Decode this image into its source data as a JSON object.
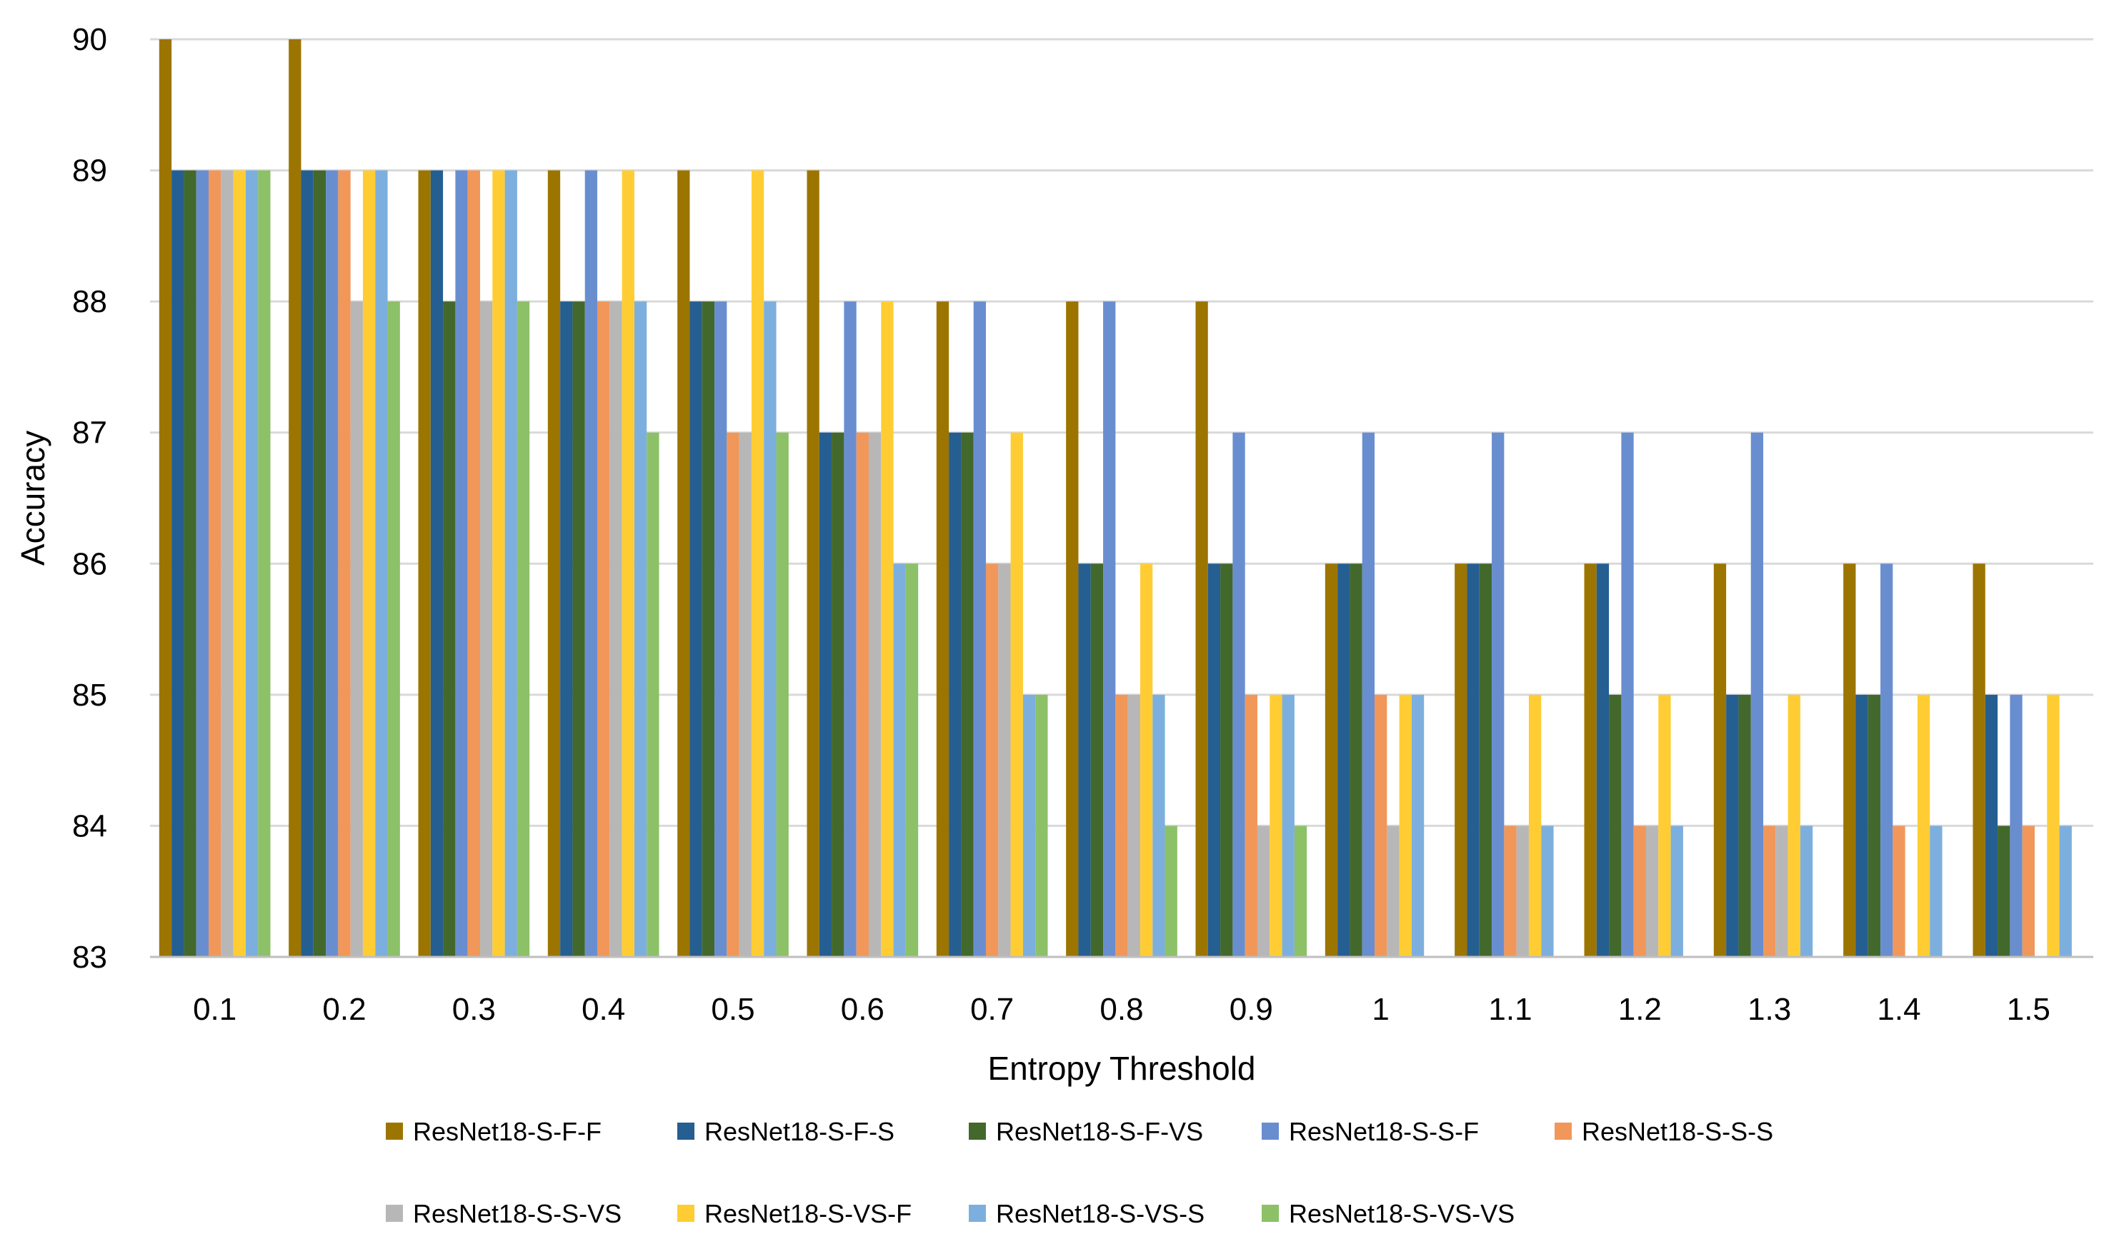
{
  "chart_data": {
    "type": "bar",
    "title": "",
    "xlabel": "Entropy Threshold",
    "ylabel": "Accuracy",
    "ylim": [
      83,
      90
    ],
    "yticks": [
      83,
      84,
      85,
      86,
      87,
      88,
      89,
      90
    ],
    "grid": true,
    "legend_position": "bottom",
    "categories": [
      "0.1",
      "0.2",
      "0.3",
      "0.4",
      "0.5",
      "0.6",
      "0.7",
      "0.8",
      "0.9",
      "1",
      "1.1",
      "1.2",
      "1.3",
      "1.4",
      "1.5"
    ],
    "series": [
      {
        "name": "ResNet18-S-F-F",
        "color": "#9C7500",
        "values": [
          90,
          90,
          89,
          89,
          89,
          89,
          88,
          88,
          88,
          86,
          86,
          86,
          86,
          86,
          86
        ]
      },
      {
        "name": "ResNet18-S-F-S",
        "color": "#255E91",
        "values": [
          89,
          89,
          89,
          88,
          88,
          87,
          87,
          86,
          86,
          86,
          86,
          86,
          85,
          85,
          85
        ]
      },
      {
        "name": "ResNet18-S-F-VS",
        "color": "#43682B",
        "values": [
          89,
          89,
          88,
          88,
          88,
          87,
          87,
          86,
          86,
          86,
          86,
          85,
          85,
          85,
          84
        ]
      },
      {
        "name": "ResNet18-S-S-F",
        "color": "#698ED0",
        "values": [
          89,
          89,
          89,
          89,
          88,
          88,
          88,
          88,
          87,
          87,
          87,
          87,
          87,
          86,
          85
        ]
      },
      {
        "name": "ResNet18-S-S-S",
        "color": "#F1975A",
        "values": [
          89,
          89,
          89,
          88,
          87,
          87,
          86,
          85,
          85,
          85,
          84,
          84,
          84,
          84,
          84
        ]
      },
      {
        "name": "ResNet18-S-S-VS",
        "color": "#B7B7B7",
        "values": [
          89,
          88,
          88,
          88,
          87,
          87,
          86,
          85,
          84,
          84,
          84,
          84,
          84,
          83,
          83
        ]
      },
      {
        "name": "ResNet18-S-VS-F",
        "color": "#FFCD33",
        "values": [
          89,
          89,
          89,
          89,
          89,
          88,
          87,
          86,
          85,
          85,
          85,
          85,
          85,
          85,
          85
        ]
      },
      {
        "name": "ResNet18-S-VS-S",
        "color": "#7CAFDD",
        "values": [
          89,
          89,
          89,
          88,
          88,
          86,
          85,
          85,
          85,
          85,
          84,
          84,
          84,
          84,
          84
        ]
      },
      {
        "name": "ResNet18-S-VS-VS",
        "color": "#8CC168",
        "values": [
          89,
          88,
          88,
          87,
          87,
          86,
          85,
          84,
          84,
          83,
          83,
          83,
          83,
          83,
          83
        ]
      }
    ]
  },
  "colors": {
    "gridline": "#D9D9D9",
    "axis_line": "#BFBFBF",
    "text": "#000000"
  }
}
